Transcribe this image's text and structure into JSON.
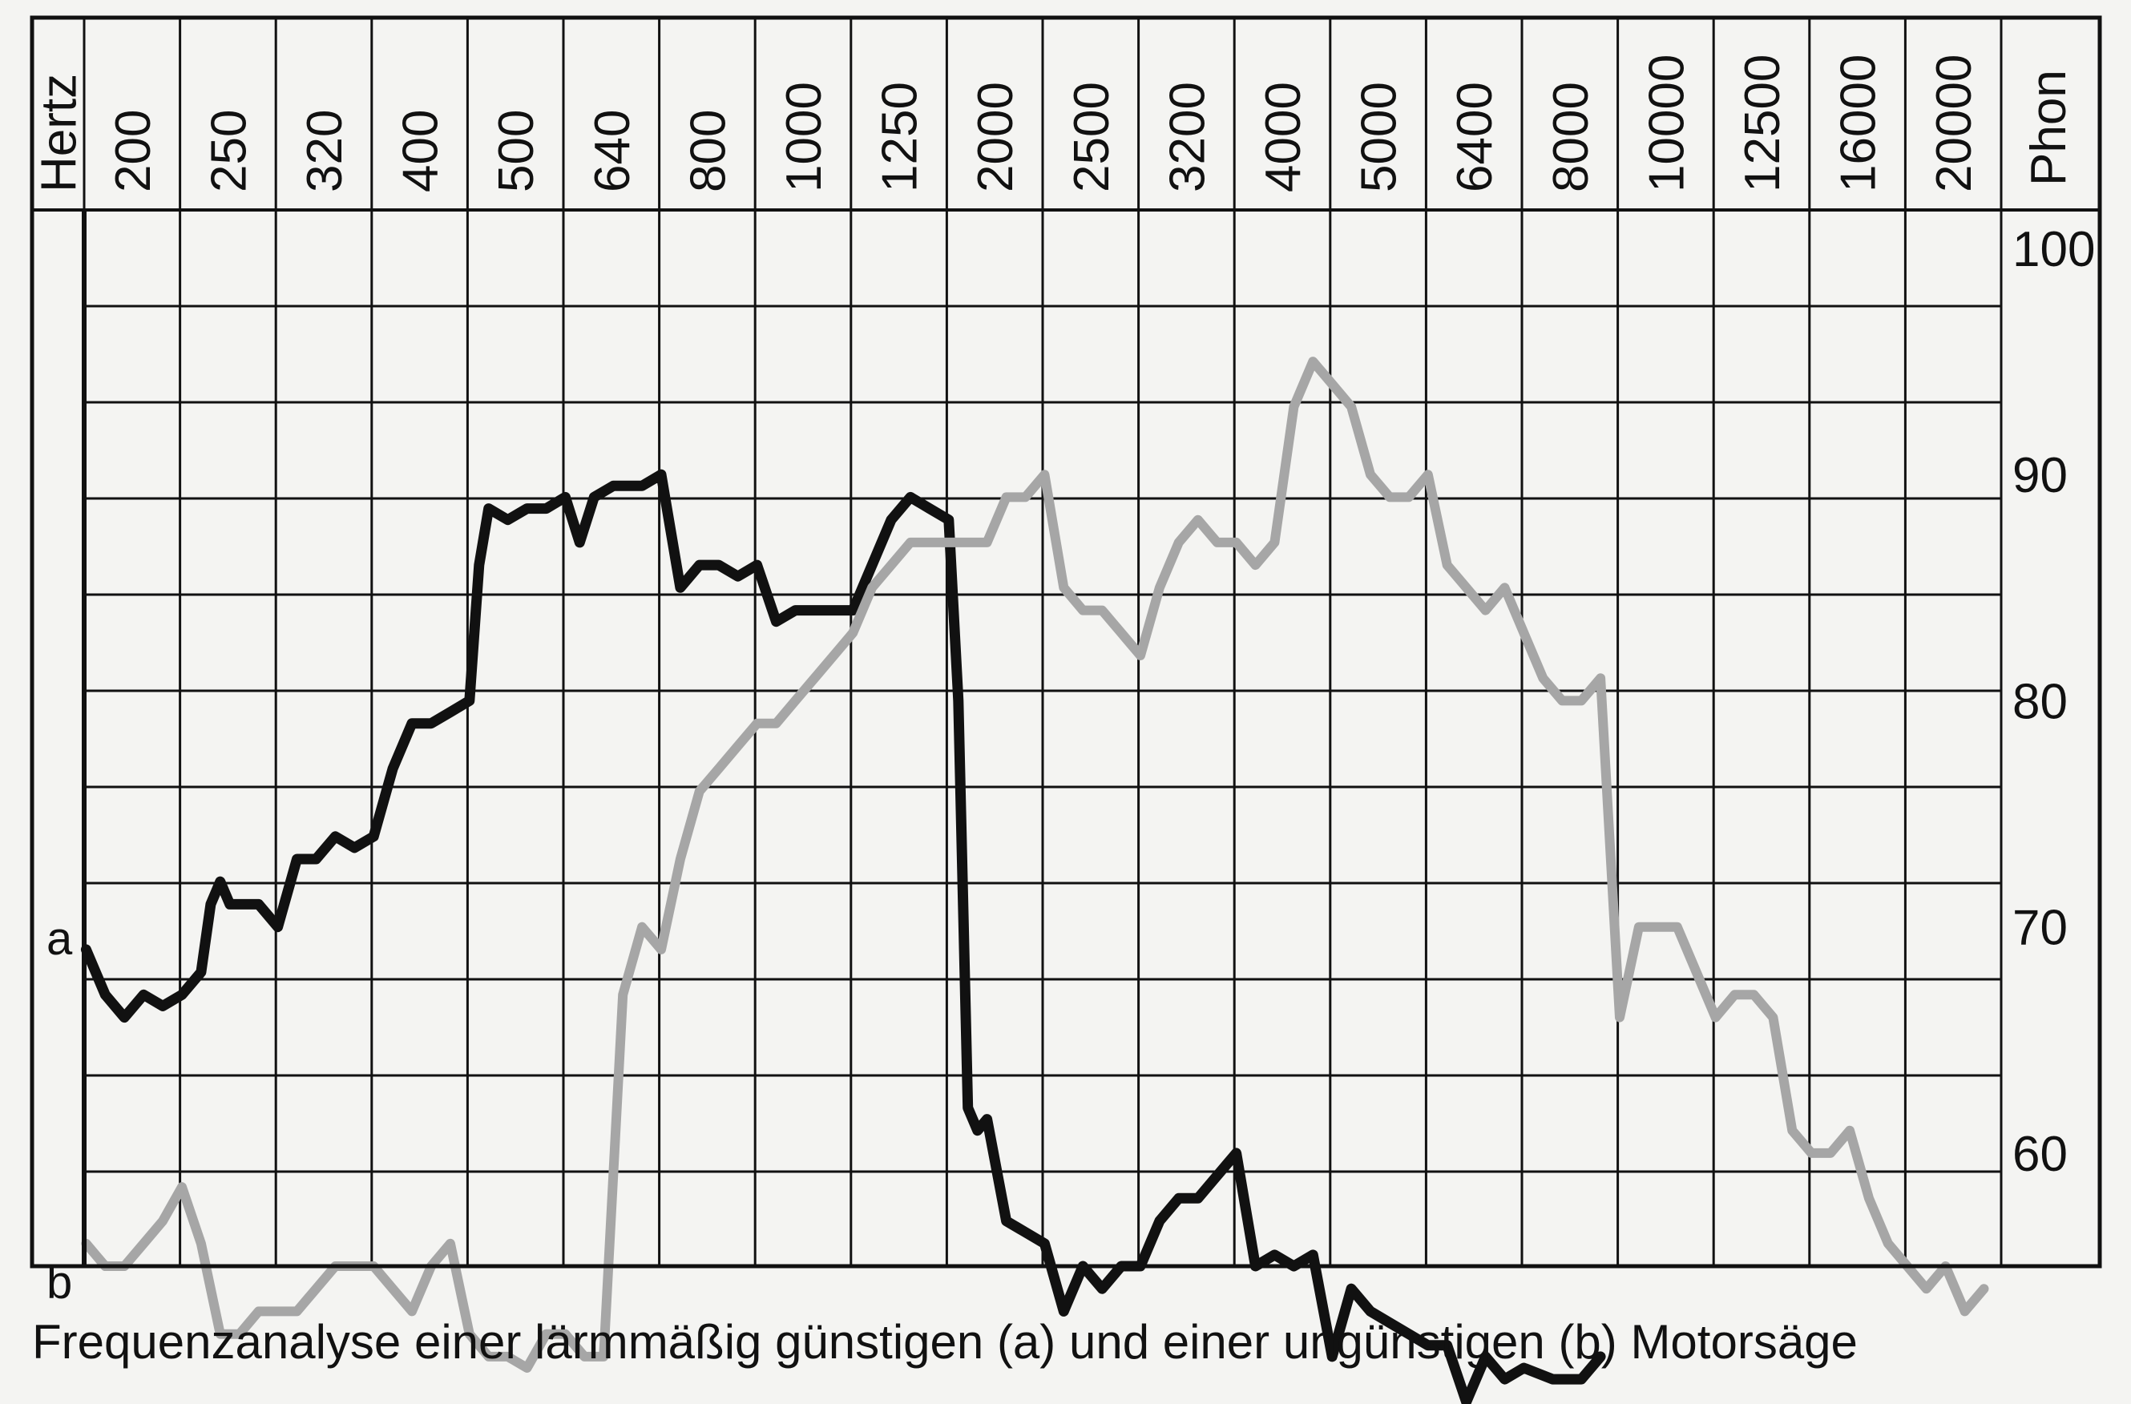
{
  "caption": "Frequenzanalyse einer lärmmäßig günstigen (a) und einer ungünstigen (b) Motorsäge",
  "chart_data": {
    "type": "line",
    "x_unit": "Hertz",
    "y_unit": "Phon",
    "categories": [
      "200",
      "250",
      "320",
      "400",
      "500",
      "640",
      "800",
      "1000",
      "1250",
      "2000",
      "2500",
      "3200",
      "4000",
      "5000",
      "6400",
      "8000",
      "10000",
      "12500",
      "16000",
      "20000"
    ],
    "yticks": [
      100,
      90,
      80,
      70,
      60
    ],
    "ylim": [
      48,
      103
    ],
    "grid": true,
    "series": [
      {
        "name": "a",
        "color": "#111111",
        "points": [
          [
            0,
            69
          ],
          [
            0.2,
            67
          ],
          [
            0.4,
            66
          ],
          [
            0.6,
            67
          ],
          [
            0.8,
            66.5
          ],
          [
            1.0,
            67
          ],
          [
            1.2,
            68
          ],
          [
            1.3,
            71
          ],
          [
            1.4,
            72
          ],
          [
            1.5,
            71
          ],
          [
            1.8,
            71
          ],
          [
            2.0,
            70
          ],
          [
            2.2,
            73
          ],
          [
            2.4,
            73
          ],
          [
            2.6,
            74
          ],
          [
            2.8,
            73.5
          ],
          [
            3.0,
            74
          ],
          [
            3.2,
            77
          ],
          [
            3.4,
            79
          ],
          [
            3.6,
            79
          ],
          [
            3.8,
            79.5
          ],
          [
            4.0,
            80
          ],
          [
            4.1,
            86
          ],
          [
            4.2,
            88.5
          ],
          [
            4.4,
            88
          ],
          [
            4.6,
            88.5
          ],
          [
            4.8,
            88.5
          ],
          [
            5.0,
            89
          ],
          [
            5.15,
            87
          ],
          [
            5.3,
            89
          ],
          [
            5.5,
            89.5
          ],
          [
            5.8,
            89.5
          ],
          [
            6.0,
            90
          ],
          [
            6.2,
            85
          ],
          [
            6.4,
            86
          ],
          [
            6.6,
            86
          ],
          [
            6.8,
            85.5
          ],
          [
            7.0,
            86
          ],
          [
            7.2,
            83.5
          ],
          [
            7.4,
            84
          ],
          [
            7.6,
            84
          ],
          [
            7.8,
            84
          ],
          [
            8.0,
            84
          ],
          [
            8.2,
            86
          ],
          [
            8.4,
            88
          ],
          [
            8.6,
            89
          ],
          [
            8.8,
            88.5
          ],
          [
            9.0,
            88
          ],
          [
            9.1,
            80
          ],
          [
            9.2,
            62
          ],
          [
            9.3,
            61
          ],
          [
            9.4,
            61.5
          ],
          [
            9.6,
            57
          ],
          [
            9.8,
            56.5
          ],
          [
            10.0,
            56
          ],
          [
            10.2,
            53
          ],
          [
            10.4,
            55
          ],
          [
            10.6,
            54
          ],
          [
            10.8,
            55
          ],
          [
            11.0,
            55
          ],
          [
            11.2,
            57
          ],
          [
            11.4,
            58
          ],
          [
            11.6,
            58
          ],
          [
            11.8,
            59
          ],
          [
            12.0,
            60
          ],
          [
            12.2,
            55
          ],
          [
            12.4,
            55.5
          ],
          [
            12.6,
            55
          ],
          [
            12.8,
            55.5
          ],
          [
            13.0,
            51
          ],
          [
            13.2,
            54
          ],
          [
            13.4,
            53
          ],
          [
            13.6,
            52.5
          ],
          [
            13.8,
            52
          ],
          [
            14.0,
            51.5
          ],
          [
            14.2,
            51.5
          ],
          [
            14.4,
            49
          ],
          [
            14.6,
            51
          ],
          [
            14.8,
            50
          ],
          [
            15.0,
            50.5
          ],
          [
            15.3,
            50
          ],
          [
            15.6,
            50
          ],
          [
            15.8,
            51
          ]
        ]
      },
      {
        "name": "b",
        "color": "#a6a6a6",
        "points": [
          [
            0,
            56
          ],
          [
            0.2,
            55
          ],
          [
            0.4,
            55
          ],
          [
            0.6,
            56
          ],
          [
            0.8,
            57
          ],
          [
            1.0,
            58.5
          ],
          [
            1.2,
            56
          ],
          [
            1.4,
            52
          ],
          [
            1.6,
            52
          ],
          [
            1.8,
            53
          ],
          [
            2.0,
            53
          ],
          [
            2.2,
            53
          ],
          [
            2.4,
            54
          ],
          [
            2.6,
            55
          ],
          [
            2.8,
            55
          ],
          [
            3.0,
            55
          ],
          [
            3.2,
            54
          ],
          [
            3.4,
            53
          ],
          [
            3.6,
            55
          ],
          [
            3.8,
            56
          ],
          [
            4.0,
            52
          ],
          [
            4.2,
            51
          ],
          [
            4.4,
            51
          ],
          [
            4.6,
            50.5
          ],
          [
            4.8,
            52
          ],
          [
            5.0,
            52
          ],
          [
            5.2,
            51
          ],
          [
            5.4,
            51
          ],
          [
            5.6,
            67
          ],
          [
            5.8,
            70
          ],
          [
            6.0,
            69
          ],
          [
            6.2,
            73
          ],
          [
            6.4,
            76
          ],
          [
            6.6,
            77
          ],
          [
            6.8,
            78
          ],
          [
            7.0,
            79
          ],
          [
            7.2,
            79
          ],
          [
            7.4,
            80
          ],
          [
            7.6,
            81
          ],
          [
            7.8,
            82
          ],
          [
            8.0,
            83
          ],
          [
            8.2,
            85
          ],
          [
            8.4,
            86
          ],
          [
            8.6,
            87
          ],
          [
            8.8,
            87
          ],
          [
            9.0,
            87
          ],
          [
            9.2,
            87
          ],
          [
            9.4,
            87
          ],
          [
            9.6,
            89
          ],
          [
            9.8,
            89
          ],
          [
            10.0,
            90
          ],
          [
            10.2,
            85
          ],
          [
            10.4,
            84
          ],
          [
            10.6,
            84
          ],
          [
            10.8,
            83
          ],
          [
            11.0,
            82
          ],
          [
            11.2,
            85
          ],
          [
            11.4,
            87
          ],
          [
            11.6,
            88
          ],
          [
            11.8,
            87
          ],
          [
            12.0,
            87
          ],
          [
            12.2,
            86
          ],
          [
            12.4,
            87
          ],
          [
            12.6,
            93
          ],
          [
            12.8,
            95
          ],
          [
            13.0,
            94
          ],
          [
            13.2,
            93
          ],
          [
            13.4,
            90
          ],
          [
            13.6,
            89
          ],
          [
            13.8,
            89
          ],
          [
            14.0,
            90
          ],
          [
            14.2,
            86
          ],
          [
            14.4,
            85
          ],
          [
            14.6,
            84
          ],
          [
            14.8,
            85
          ],
          [
            15.0,
            83
          ],
          [
            15.2,
            81
          ],
          [
            15.4,
            80
          ],
          [
            15.6,
            80
          ],
          [
            15.8,
            81
          ],
          [
            16.0,
            66
          ],
          [
            16.2,
            70
          ],
          [
            16.4,
            70
          ],
          [
            16.6,
            70
          ],
          [
            16.8,
            68
          ],
          [
            17.0,
            66
          ],
          [
            17.2,
            67
          ],
          [
            17.4,
            67
          ],
          [
            17.6,
            66
          ],
          [
            17.8,
            61
          ],
          [
            18.0,
            60
          ],
          [
            18.2,
            60
          ],
          [
            18.4,
            61
          ],
          [
            18.6,
            58
          ],
          [
            18.8,
            56
          ],
          [
            19.0,
            55
          ],
          [
            19.2,
            54
          ],
          [
            19.4,
            55
          ],
          [
            19.6,
            53
          ],
          [
            19.8,
            54
          ]
        ]
      }
    ]
  }
}
